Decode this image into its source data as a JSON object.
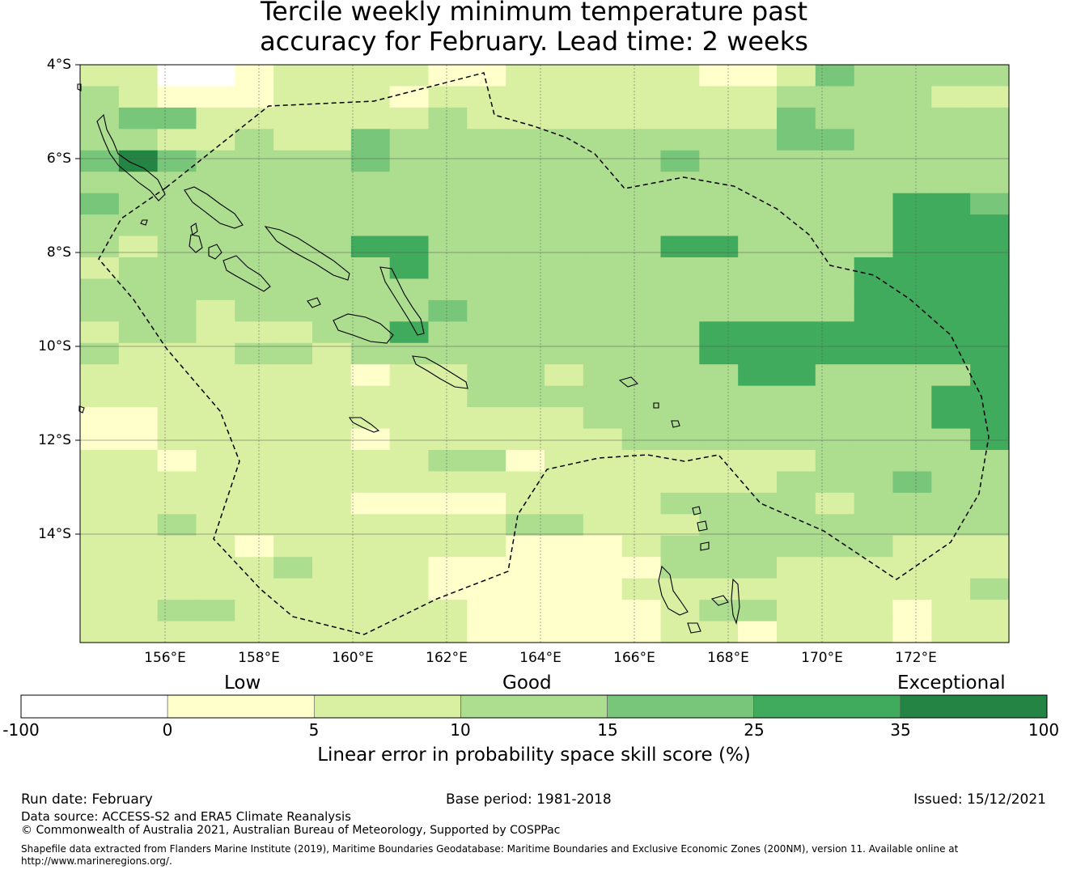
{
  "title": {
    "line1": "Tercile weekly minimum temperature past",
    "line2": "accuracy for February. Lead time: 2 weeks"
  },
  "map": {
    "lat_labels": [
      "4°S",
      "6°S",
      "8°S",
      "10°S",
      "12°S",
      "14°S"
    ],
    "lon_labels": [
      "156°E",
      "158°E",
      "160°E",
      "162°E",
      "164°E",
      "166°E",
      "168°E",
      "170°E",
      "172°E"
    ],
    "lon_range": [
      154.2,
      174
    ],
    "lat_range": [
      -4,
      -16.3
    ],
    "grid_cell_deg": 0.833,
    "skill_grid": [
      [
        2,
        2,
        0,
        0,
        1,
        2,
        2,
        2,
        2,
        1,
        1,
        2,
        2,
        2,
        2,
        2,
        1,
        1,
        2,
        4,
        3,
        3,
        3,
        3
      ],
      [
        3,
        2,
        1,
        1,
        1,
        2,
        2,
        2,
        1,
        2,
        2,
        2,
        2,
        2,
        2,
        2,
        2,
        2,
        3,
        3,
        3,
        3,
        2,
        2
      ],
      [
        3,
        4,
        4,
        2,
        2,
        2,
        2,
        2,
        2,
        3,
        2,
        2,
        2,
        2,
        2,
        2,
        2,
        2,
        4,
        3,
        3,
        3,
        3,
        3
      ],
      [
        3,
        3,
        2,
        2,
        3,
        2,
        2,
        4,
        3,
        3,
        3,
        3,
        3,
        3,
        3,
        3,
        3,
        3,
        4,
        4,
        3,
        3,
        3,
        3
      ],
      [
        4,
        6,
        4,
        3,
        3,
        3,
        3,
        4,
        3,
        3,
        3,
        3,
        3,
        3,
        3,
        4,
        3,
        3,
        3,
        3,
        3,
        3,
        3,
        3
      ],
      [
        3,
        3,
        3,
        3,
        3,
        3,
        3,
        3,
        3,
        3,
        3,
        3,
        3,
        3,
        3,
        3,
        3,
        3,
        3,
        3,
        3,
        3,
        3,
        3
      ],
      [
        4,
        3,
        3,
        3,
        3,
        3,
        3,
        3,
        3,
        3,
        3,
        3,
        3,
        3,
        3,
        3,
        3,
        3,
        3,
        3,
        3,
        5,
        5,
        4
      ],
      [
        3,
        3,
        3,
        3,
        3,
        3,
        3,
        3,
        3,
        3,
        3,
        3,
        3,
        3,
        3,
        3,
        3,
        3,
        3,
        3,
        3,
        5,
        5,
        5
      ],
      [
        3,
        2,
        3,
        3,
        3,
        3,
        3,
        5,
        5,
        3,
        3,
        3,
        3,
        3,
        3,
        5,
        5,
        3,
        3,
        3,
        3,
        5,
        5,
        5
      ],
      [
        2,
        3,
        3,
        3,
        3,
        3,
        3,
        3,
        5,
        3,
        3,
        3,
        3,
        3,
        3,
        3,
        3,
        3,
        3,
        3,
        5,
        5,
        5,
        5
      ],
      [
        3,
        3,
        3,
        3,
        3,
        3,
        3,
        3,
        3,
        3,
        3,
        3,
        3,
        3,
        3,
        3,
        3,
        3,
        3,
        3,
        5,
        5,
        5,
        5
      ],
      [
        3,
        3,
        3,
        2,
        3,
        3,
        3,
        3,
        3,
        4,
        3,
        3,
        3,
        3,
        3,
        3,
        3,
        3,
        3,
        3,
        5,
        5,
        5,
        5
      ],
      [
        2,
        3,
        3,
        2,
        2,
        2,
        3,
        3,
        5,
        3,
        3,
        3,
        3,
        3,
        3,
        3,
        5,
        5,
        5,
        5,
        5,
        5,
        5,
        5
      ],
      [
        3,
        2,
        2,
        2,
        3,
        3,
        2,
        3,
        3,
        3,
        3,
        3,
        3,
        3,
        3,
        3,
        5,
        5,
        5,
        5,
        5,
        5,
        5,
        5
      ],
      [
        2,
        2,
        2,
        2,
        2,
        2,
        2,
        1,
        2,
        2,
        3,
        3,
        2,
        3,
        3,
        3,
        3,
        5,
        5,
        3,
        3,
        3,
        3,
        5
      ],
      [
        2,
        2,
        2,
        2,
        2,
        2,
        2,
        2,
        2,
        2,
        3,
        3,
        3,
        3,
        3,
        3,
        3,
        3,
        3,
        3,
        3,
        3,
        5,
        5
      ],
      [
        1,
        1,
        2,
        2,
        2,
        2,
        2,
        2,
        2,
        2,
        2,
        2,
        2,
        3,
        3,
        3,
        3,
        3,
        3,
        3,
        3,
        3,
        5,
        5
      ],
      [
        1,
        1,
        2,
        2,
        2,
        2,
        2,
        1,
        2,
        2,
        2,
        2,
        2,
        2,
        3,
        3,
        3,
        3,
        3,
        3,
        3,
        3,
        3,
        5
      ],
      [
        2,
        2,
        1,
        2,
        2,
        2,
        2,
        2,
        2,
        3,
        3,
        1,
        2,
        2,
        2,
        2,
        2,
        2,
        2,
        3,
        3,
        3,
        3,
        3
      ],
      [
        2,
        2,
        2,
        2,
        2,
        2,
        2,
        2,
        2,
        2,
        2,
        2,
        2,
        2,
        2,
        2,
        2,
        2,
        3,
        3,
        3,
        4,
        3,
        3
      ],
      [
        2,
        2,
        2,
        2,
        2,
        2,
        2,
        1,
        1,
        1,
        1,
        2,
        2,
        2,
        2,
        3,
        3,
        3,
        3,
        2,
        3,
        3,
        3,
        3
      ],
      [
        2,
        2,
        3,
        2,
        2,
        2,
        2,
        2,
        2,
        2,
        2,
        3,
        3,
        2,
        2,
        2,
        3,
        3,
        3,
        3,
        3,
        3,
        3,
        3
      ],
      [
        2,
        2,
        2,
        2,
        1,
        2,
        2,
        2,
        2,
        2,
        2,
        1,
        1,
        1,
        2,
        3,
        3,
        3,
        3,
        3,
        3,
        2,
        2,
        2
      ],
      [
        2,
        2,
        2,
        2,
        2,
        3,
        2,
        2,
        2,
        1,
        1,
        1,
        1,
        1,
        1,
        3,
        3,
        3,
        2,
        2,
        2,
        2,
        2,
        2
      ],
      [
        2,
        2,
        2,
        2,
        2,
        2,
        2,
        2,
        2,
        1,
        1,
        1,
        1,
        1,
        2,
        2,
        2,
        2,
        2,
        2,
        2,
        2,
        2,
        3
      ],
      [
        2,
        2,
        3,
        3,
        2,
        2,
        2,
        2,
        2,
        2,
        1,
        1,
        1,
        1,
        1,
        2,
        3,
        3,
        2,
        2,
        2,
        1,
        2,
        2
      ],
      [
        2,
        2,
        2,
        2,
        2,
        2,
        2,
        2,
        2,
        2,
        1,
        1,
        1,
        1,
        1,
        2,
        2,
        1,
        2,
        2,
        2,
        1,
        2,
        2
      ]
    ]
  },
  "category_labels": {
    "low": "Low",
    "good": "Good",
    "exceptional": "Exceptional"
  },
  "colorbar": {
    "ticks": [
      "-100",
      "0",
      "5",
      "10",
      "15",
      "25",
      "35",
      "100"
    ],
    "bounds": [
      -100,
      0,
      5,
      10,
      15,
      25,
      35,
      100
    ],
    "colors": [
      "#ffffff",
      "#ffffcc",
      "#d9f0a3",
      "#addd8e",
      "#78c679",
      "#41ab5d",
      "#238443"
    ],
    "label": "Linear error in probability space skill score (%)"
  },
  "footer": {
    "run_date": "Run date: February",
    "base_period": "Base period: 1981-2018",
    "issued": "Issued: 15/12/2021",
    "data_source": "Data source: ACCESS-S2 and ERA5 Climate Reanalysis",
    "copyright": "© Commonwealth of Australia 2021, Australian Bureau of Meteorology, Supported by COSPPac",
    "shapefile_note": "Shapefile data extracted from Flanders Marine Institute (2019), Maritime Boundaries Geodatabase: Maritime Boundaries and Exclusive Economic Zones (200NM), version 11. Available online at http://www.marineregions.org/."
  }
}
